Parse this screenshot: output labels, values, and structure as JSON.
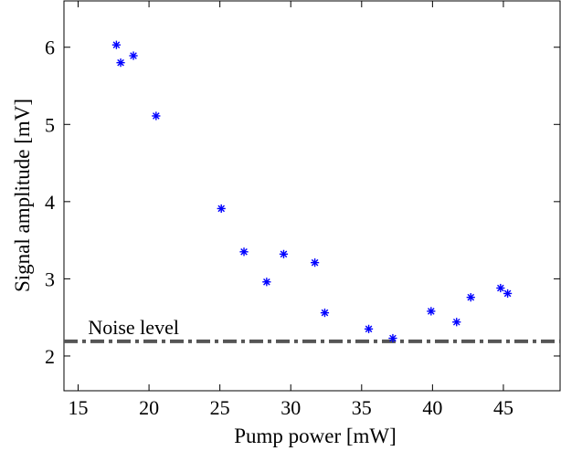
{
  "chart_data": {
    "type": "scatter",
    "title": "",
    "xlabel": "Pump power [mW]",
    "ylabel": "Signal amplitude [mV]",
    "xlim": [
      14,
      49
    ],
    "ylim": [
      1.55,
      6.6
    ],
    "xticks": [
      15,
      20,
      25,
      30,
      35,
      40,
      45
    ],
    "yticks": [
      2,
      3,
      4,
      5,
      6
    ],
    "grid": false,
    "legend": "none",
    "series": [
      {
        "marker": "asterisk",
        "color": "#0000ff",
        "points": [
          [
            17.7,
            6.03
          ],
          [
            18.0,
            5.8
          ],
          [
            18.9,
            5.89
          ],
          [
            20.5,
            5.11
          ],
          [
            25.1,
            3.91
          ],
          [
            26.7,
            3.35
          ],
          [
            28.3,
            2.96
          ],
          [
            29.5,
            3.32
          ],
          [
            31.7,
            3.21
          ],
          [
            32.4,
            2.56
          ],
          [
            35.5,
            2.35
          ],
          [
            37.2,
            2.23
          ],
          [
            39.9,
            2.58
          ],
          [
            41.7,
            2.44
          ],
          [
            42.7,
            2.76
          ],
          [
            44.8,
            2.88
          ],
          [
            45.3,
            2.81
          ]
        ]
      }
    ],
    "reference_lines": [
      {
        "y": 2.19,
        "label": "Noise level",
        "style": "dash-dot",
        "color": "#555555"
      }
    ]
  }
}
